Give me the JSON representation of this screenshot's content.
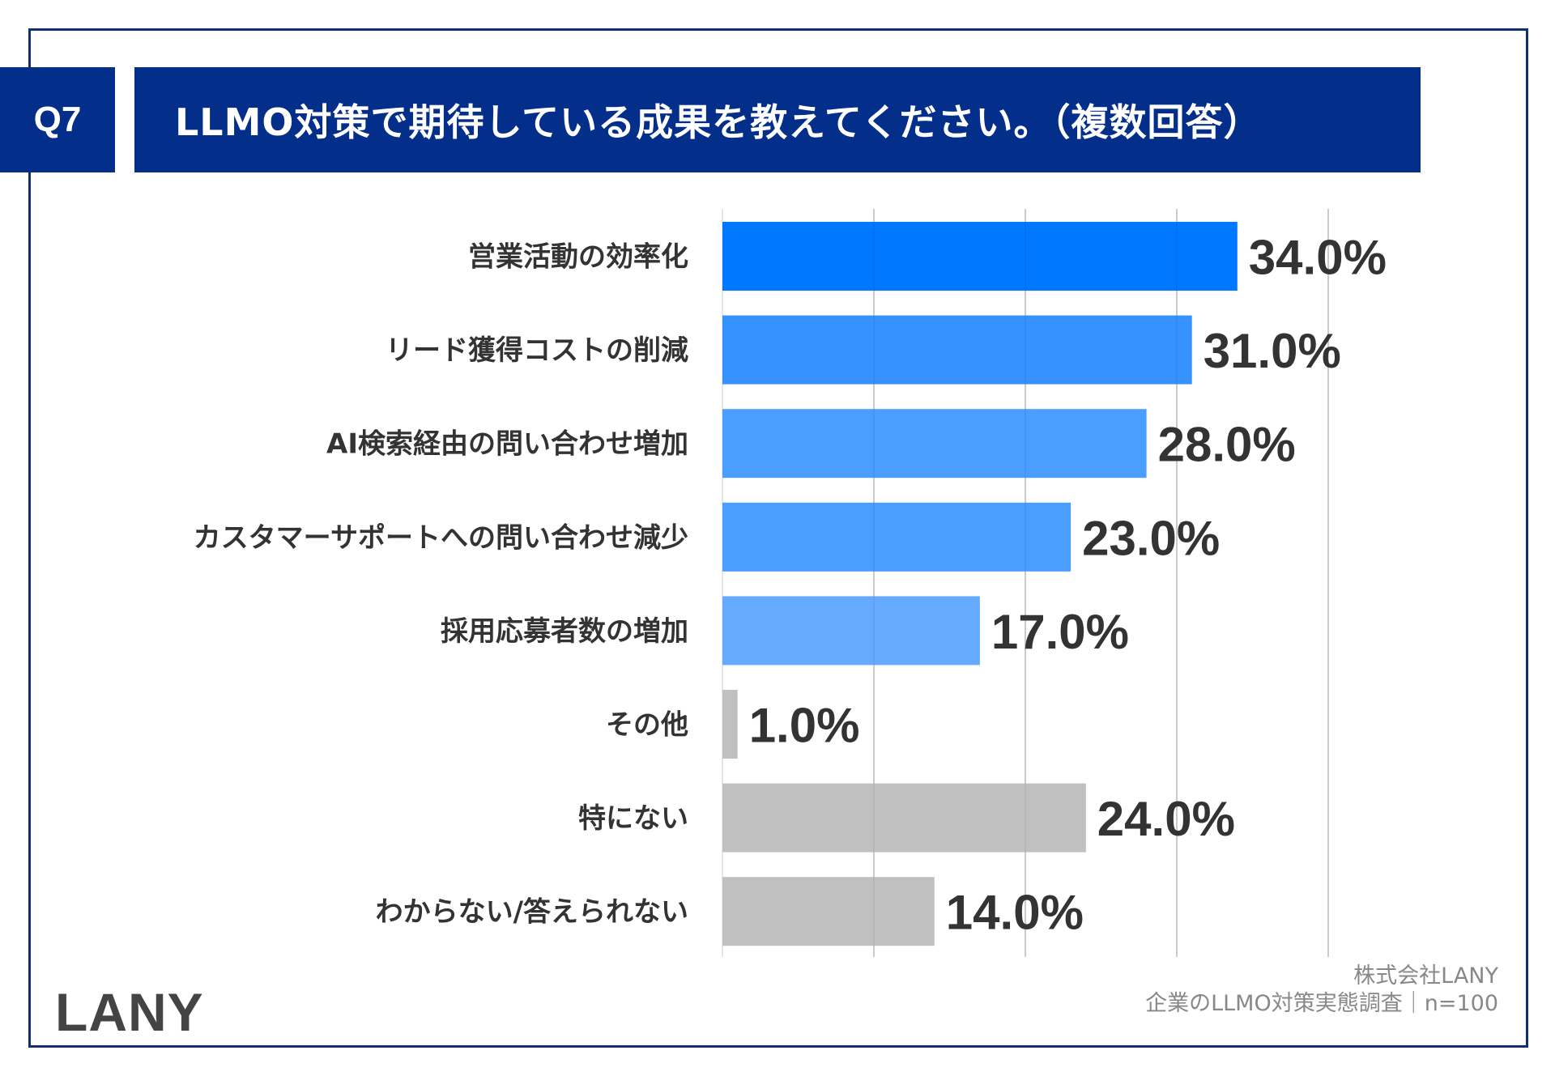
{
  "header": {
    "question_no": "Q7",
    "title": "LLMO対策で期待している成果を教えてください。（複数回答）"
  },
  "colors": {
    "navy": "#032e8a",
    "frame": "#12306e",
    "gray_bar": "#c0c0c0",
    "text": "#333333"
  },
  "chart_data": {
    "type": "bar",
    "orientation": "horizontal",
    "title": "LLMO対策で期待している成果を教えてください。（複数回答）",
    "xlabel": "",
    "ylabel": "",
    "unit": "%",
    "xlim": [
      0,
      40
    ],
    "grid": true,
    "grid_step": 10,
    "legend": "none",
    "categories": [
      "営業活動の効率化",
      "リード獲得コストの削減",
      "AI検索経由の問い合わせ増加",
      "カスタマーサポートへの問い合わせ減少",
      "採用応募者数の増加",
      "その他",
      "特にない",
      "わからない/答えられない"
    ],
    "values": [
      34.0,
      31.0,
      28.0,
      23.0,
      17.0,
      1.0,
      24.0,
      14.0
    ],
    "value_labels": [
      "34.0%",
      "31.0%",
      "28.0%",
      "23.0%",
      "17.0%",
      "1.0%",
      "24.0%",
      "14.0%"
    ],
    "bar_colors": [
      "#0078ff",
      "#3592ff",
      "#4a9eff",
      "#4a9eff",
      "#66aaff",
      "#c0c0c0",
      "#c0c0c0",
      "#c0c0c0"
    ]
  },
  "footer": {
    "company": "株式会社LANY",
    "survey": "企業のLLMO対策実態調査｜n=100"
  },
  "logo": "LANY"
}
